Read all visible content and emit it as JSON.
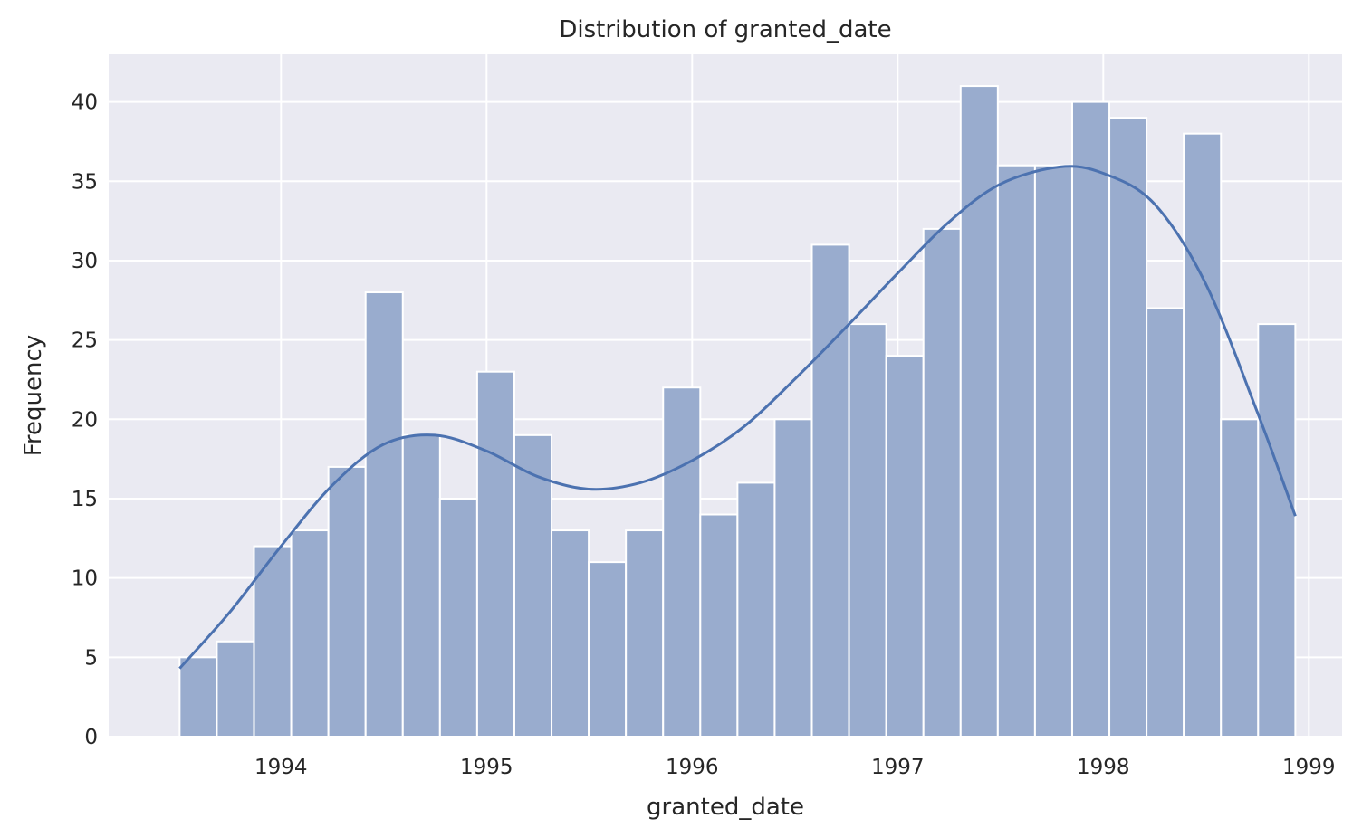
{
  "chart_data": {
    "type": "histogram",
    "title": "Distribution of granted_date",
    "xlabel": "granted_date",
    "ylabel": "Frequency",
    "xlim": [
      "1993-03-01",
      "1999-03-01"
    ],
    "ylim": [
      0,
      43
    ],
    "grid": true,
    "x_ticks": [
      "1994",
      "1995",
      "1996",
      "1997",
      "1998",
      "1999"
    ],
    "y_ticks": [
      0,
      5,
      10,
      15,
      20,
      25,
      30,
      35,
      40
    ],
    "bins": {
      "start": "1993-07-05",
      "end": "1998-12-08",
      "counts": [
        5,
        6,
        12,
        13,
        17,
        28,
        19,
        15,
        23,
        19,
        13,
        11,
        13,
        22,
        14,
        16,
        20,
        31,
        26,
        24,
        32,
        41,
        36,
        36,
        40,
        39,
        27,
        38,
        20,
        26
      ]
    },
    "series": [
      {
        "x": [
          "1993-07-05",
          "1993-10-01",
          "1994-01-01",
          "1994-04-01",
          "1994-07-01",
          "1994-10-01",
          "1995-01-01",
          "1995-04-01",
          "1995-07-01",
          "1995-10-01",
          "1996-01-01",
          "1996-04-01",
          "1996-07-01",
          "1996-10-01",
          "1997-01-01",
          "1997-04-01",
          "1997-07-01",
          "1997-10-15",
          "1998-01-01",
          "1998-04-01",
          "1998-07-01",
          "1998-10-01",
          "1998-12-08"
        ],
        "y": [
          4.3,
          7.8,
          12.0,
          15.8,
          18.4,
          19.0,
          18.0,
          16.4,
          15.6,
          16.0,
          17.4,
          19.5,
          22.5,
          25.8,
          29.2,
          32.4,
          34.8,
          35.9,
          35.5,
          33.6,
          28.6,
          20.5,
          13.9
        ]
      }
    ]
  }
}
